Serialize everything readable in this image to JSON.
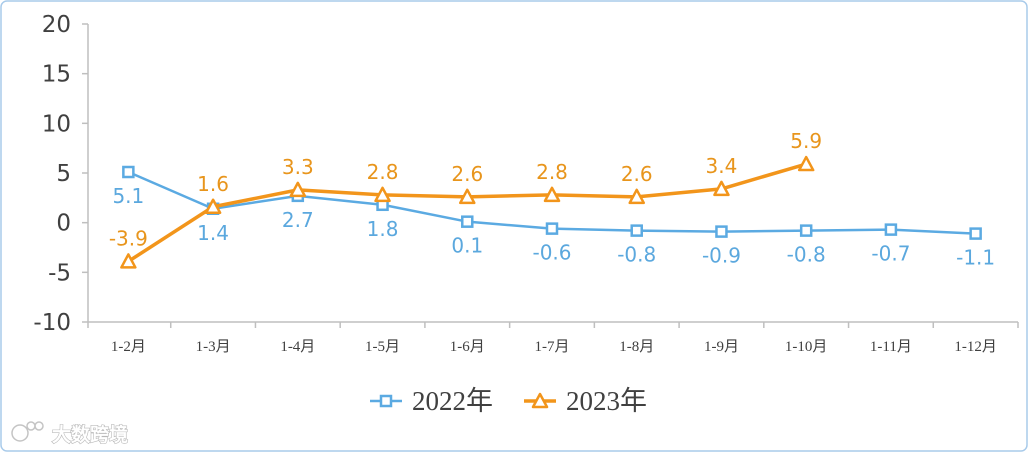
{
  "chart_data": {
    "type": "line",
    "title": "",
    "xlabel": "",
    "ylabel": "",
    "categories": [
      "1-2月",
      "1-3月",
      "1-4月",
      "1-5月",
      "1-6月",
      "1-7月",
      "1-8月",
      "1-9月",
      "1-10月",
      "1-11月",
      "1-12月"
    ],
    "series": [
      {
        "name": "2022年",
        "values": [
          5.1,
          1.4,
          2.7,
          1.8,
          0.1,
          -0.6,
          -0.8,
          -0.9,
          -0.8,
          -0.7,
          -1.1
        ],
        "color": "#5BAAE2",
        "marker": "square"
      },
      {
        "name": "2023年",
        "values": [
          -3.9,
          1.6,
          3.3,
          2.8,
          2.6,
          2.8,
          2.6,
          3.4,
          5.9,
          null,
          null
        ],
        "color": "#F2951B",
        "marker": "triangle"
      }
    ],
    "ylim": [
      -10,
      20
    ],
    "yticks": [
      -10,
      -5,
      0,
      5,
      10,
      15,
      20
    ],
    "grid": false,
    "legend": "bottom-center",
    "data_labels": true
  },
  "watermark": {
    "text": "大数跨境"
  },
  "colors": {
    "axis": "#BFBFBF",
    "text": "#404040",
    "border": "#A9CBEA",
    "label_2022": "#5BA8DE",
    "label_2023": "#E8951C"
  }
}
